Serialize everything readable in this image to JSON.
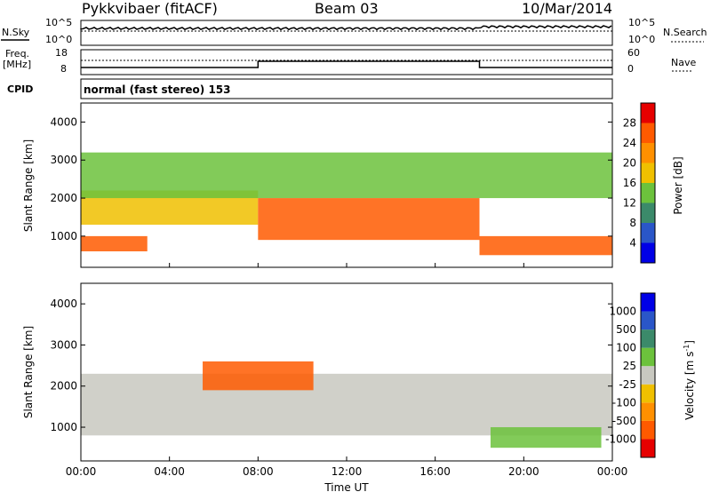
{
  "header": {
    "station": "Pykkvibaer (fitACF)",
    "beam": "Beam 03",
    "date": "10/Mar/2014"
  },
  "noise_panel": {
    "left_label": "N.Sky",
    "right_label": "N.Search",
    "left_ticks": [
      "10^5",
      "10^0"
    ],
    "right_ticks": [
      "10^5",
      "10^0"
    ]
  },
  "freq_panel": {
    "left_label_line1": "Freq.",
    "left_label_line2": "[MHz]",
    "right_label": "Nave",
    "left_ticks": [
      "18",
      "8"
    ],
    "right_ticks": [
      "60",
      "0"
    ]
  },
  "cpid": {
    "label": "CPID",
    "value": "normal (fast stereo) 153"
  },
  "colors": {
    "power_scale": [
      "#0000e6",
      "#2a56c8",
      "#3b8a6a",
      "#6cc23c",
      "#f0c000",
      "#ff9000",
      "#ff5a00",
      "#e60000"
    ],
    "velocity_scale": [
      "#e60000",
      "#ff5a00",
      "#ff9000",
      "#f0c000",
      "#c8c8c0",
      "#6cc23c",
      "#3b8a6a",
      "#2a56c8",
      "#0000e6"
    ],
    "ground_scatter": "#c8c8c0"
  },
  "chart_data": [
    {
      "type": "heatmap",
      "title": "",
      "xlabel": "",
      "ylabel": "Slant Range [km]",
      "xlim": [
        "00:00",
        "00:00"
      ],
      "ylim": [
        180,
        4500
      ],
      "x_ticks": [
        "00:00",
        "04:00",
        "08:00",
        "12:00",
        "16:00",
        "20:00",
        "00:00"
      ],
      "y_ticks": [
        "1000",
        "2000",
        "3000",
        "4000"
      ],
      "colorbar": {
        "label": "Power [dB]",
        "range": [
          0,
          32
        ],
        "ticks": [
          "4",
          "8",
          "12",
          "16",
          "20",
          "24",
          "28"
        ]
      },
      "bands_desc": [
        {
          "time_start": 0,
          "time_end": 3.0,
          "range_start": 600,
          "range_end": 1000,
          "value_db": 26
        },
        {
          "time_start": 0,
          "time_end": 8.0,
          "range_start": 1300,
          "range_end": 2200,
          "value_db": 18
        },
        {
          "time_start": 8.0,
          "time_end": 18.0,
          "range_start": 900,
          "range_end": 2000,
          "value_db": 24
        },
        {
          "time_start": 18.0,
          "time_end": 24.0,
          "range_start": 500,
          "range_end": 1000,
          "value_db": 25
        },
        {
          "time_start": 0,
          "time_end": 24.0,
          "range_start": 2000,
          "range_end": 3200,
          "value_db": 12
        }
      ]
    },
    {
      "type": "heatmap",
      "title": "",
      "xlabel": "Time UT",
      "ylabel": "Slant Range [km]",
      "xlim": [
        "00:00",
        "00:00"
      ],
      "ylim": [
        180,
        4500
      ],
      "x_ticks": [
        "00:00",
        "04:00",
        "08:00",
        "12:00",
        "16:00",
        "20:00",
        "00:00"
      ],
      "y_ticks": [
        "1000",
        "2000",
        "3000",
        "4000"
      ],
      "colorbar": {
        "label": "Velocity [m s-1]",
        "label_main": "Velocity [m s",
        "label_sup": "-1",
        "label_end": "]",
        "ticks": [
          "1000",
          "500",
          "100",
          "25",
          "-25",
          "-100",
          "-500",
          "-1000"
        ]
      },
      "bands_desc": [
        {
          "time_start": 0,
          "time_end": 24.0,
          "range_start": 800,
          "range_end": 2300,
          "value": "ground_scatter"
        },
        {
          "time_start": 5.5,
          "time_end": 10.5,
          "range_start": 1900,
          "range_end": 2600,
          "value_ms": -300
        },
        {
          "time_start": 18.5,
          "time_end": 23.5,
          "range_start": 500,
          "range_end": 1000,
          "value_ms": 400
        }
      ]
    }
  ]
}
